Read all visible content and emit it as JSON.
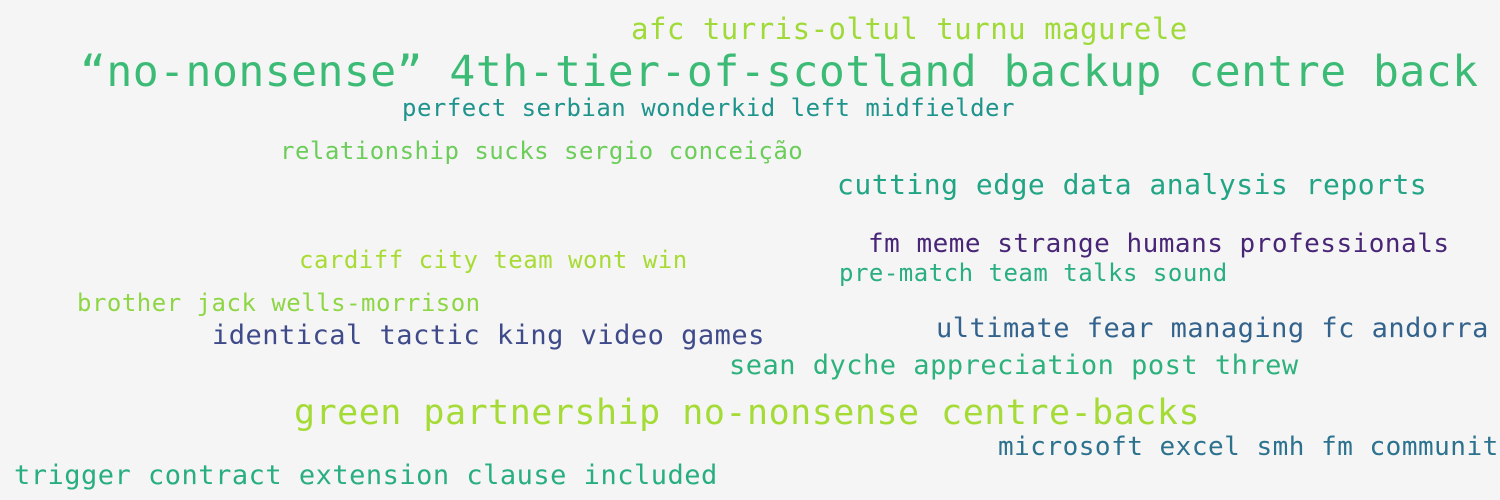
{
  "phrases": [
    {
      "text": "afc turris-oltul turnu magurele",
      "color": "#a0da39"
    },
    {
      "text": "“no-nonsense” 4th-tier-of-scotland backup centre back",
      "color": "#3bbb75"
    },
    {
      "text": "perfect serbian wonderkid left midfielder",
      "color": "#1f948c"
    },
    {
      "text": "relationship sucks sergio conceição",
      "color": "#6ccd5a"
    },
    {
      "text": "cutting edge data analysis reports",
      "color": "#21a585"
    },
    {
      "text": "fm meme strange humans professionals",
      "color": "#482576"
    },
    {
      "text": "cardiff city team wont win",
      "color": "#a8db34"
    },
    {
      "text": "pre-match team talks sound",
      "color": "#29af7f"
    },
    {
      "text": "brother jack wells-morrison",
      "color": "#8ed645"
    },
    {
      "text": "identical tactic king video games",
      "color": "#3e4a89"
    },
    {
      "text": "ultimate fear managing fc andorra",
      "color": "#33638d"
    },
    {
      "text": "sean dyche appreciation post threw",
      "color": "#2db27d"
    },
    {
      "text": "green partnership no-nonsense centre-backs",
      "color": "#a5db36"
    },
    {
      "text": "microsoft excel smh fm community",
      "color": "#2c728e"
    },
    {
      "text": "trigger contract extension clause included",
      "color": "#28ae80"
    }
  ]
}
